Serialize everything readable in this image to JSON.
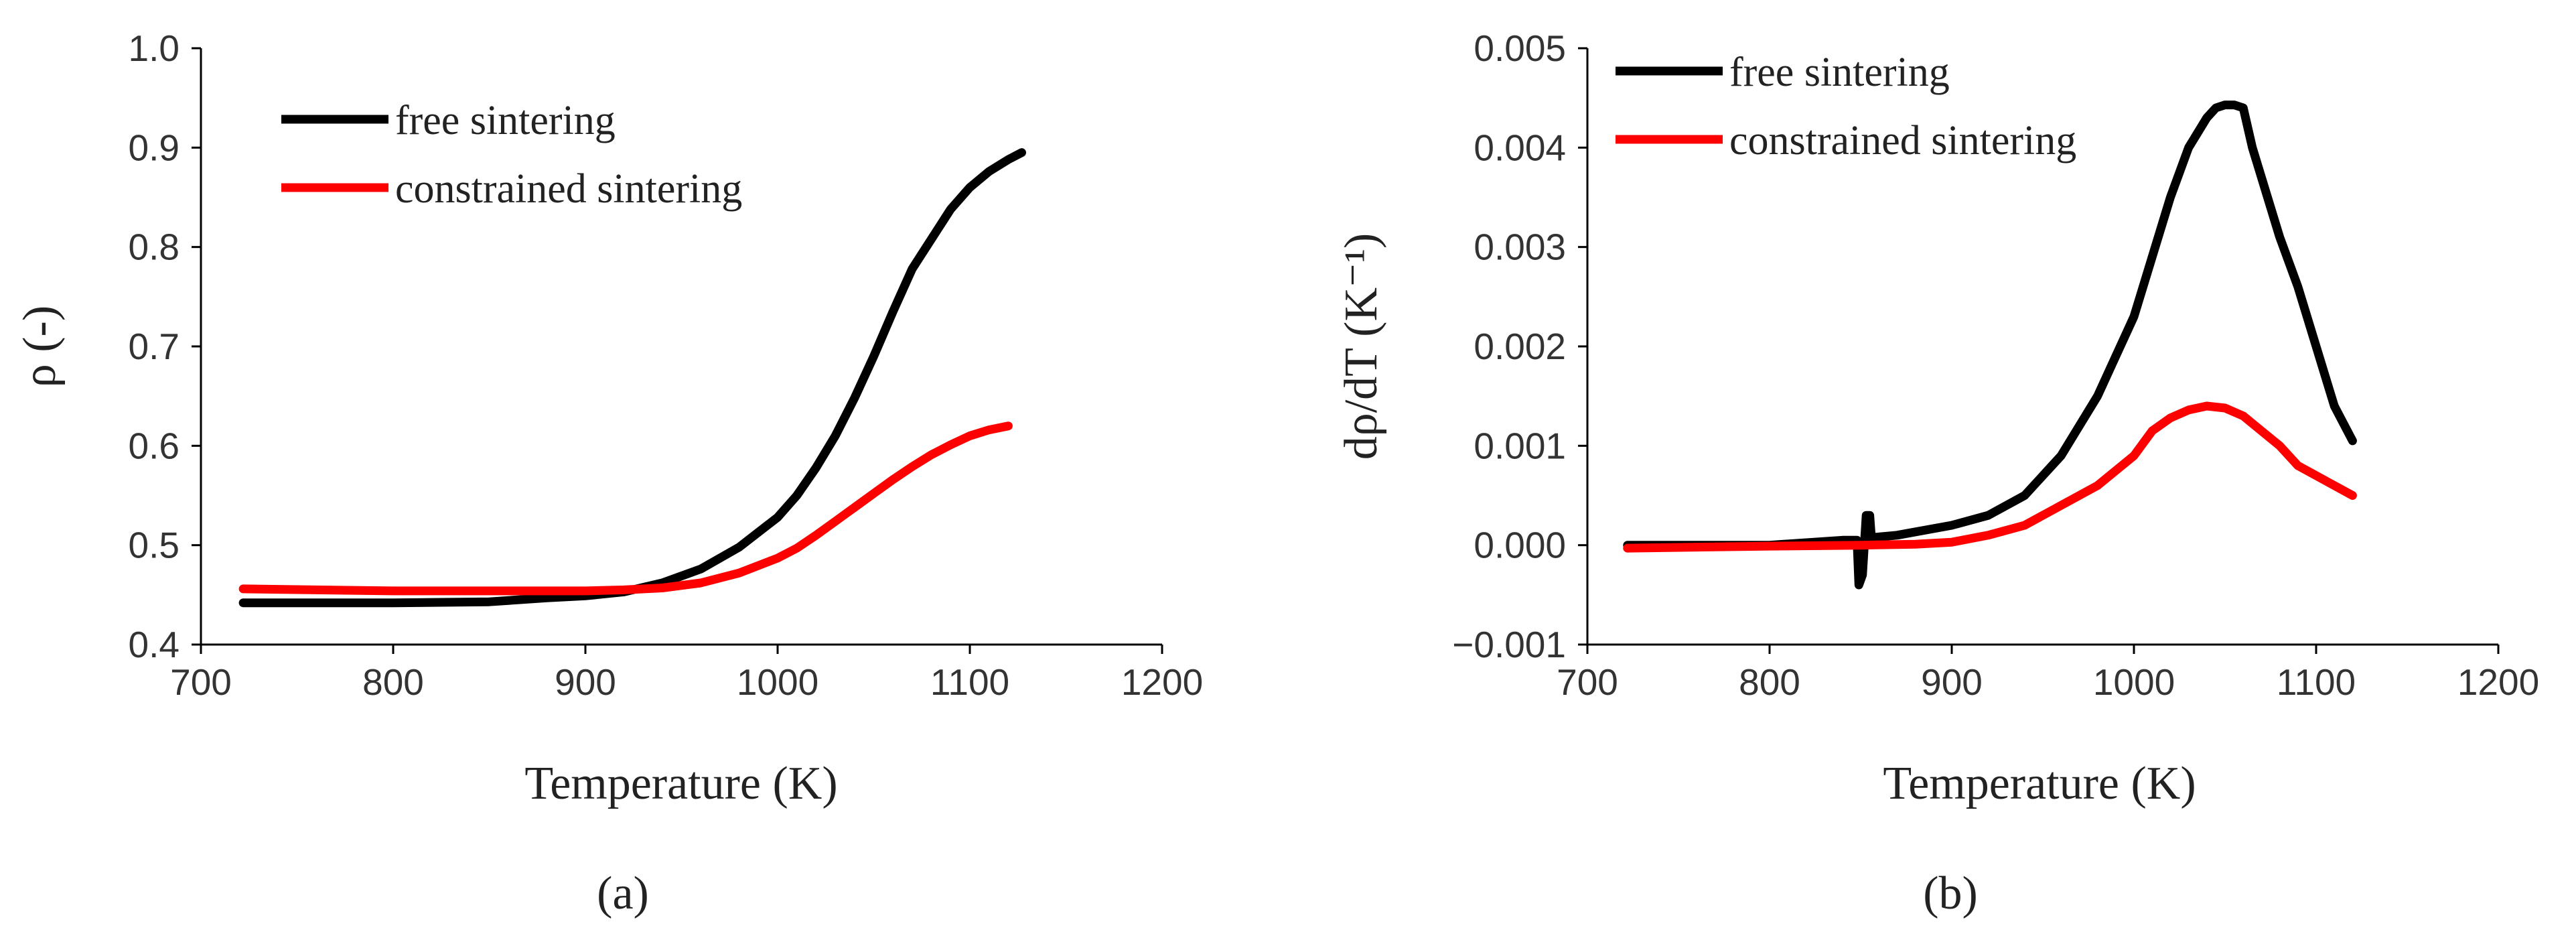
{
  "chart_data": [
    {
      "panel": "a",
      "type": "line",
      "title": "",
      "panel_label": "(a)",
      "xlabel": "Temperature (K)",
      "ylabel": "ρ (-)",
      "xlim": [
        700,
        1200
      ],
      "ylim": [
        0.4,
        1.0
      ],
      "xticks": [
        700,
        800,
        900,
        1000,
        1100,
        1200
      ],
      "xtick_labels": [
        "700",
        "800",
        "900",
        "1000",
        "1100",
        "1200"
      ],
      "yticks": [
        0.4,
        0.5,
        0.6,
        0.7,
        0.8,
        0.9,
        1.0
      ],
      "ytick_labels": [
        "0.4",
        "0.5",
        "0.6",
        "0.7",
        "0.8",
        "0.9",
        "1.0"
      ],
      "grid": false,
      "legend_position": "top-left",
      "series": [
        {
          "name": "free sintering",
          "color": "#000000",
          "x": [
            722,
            760,
            800,
            850,
            880,
            900,
            920,
            940,
            960,
            980,
            1000,
            1010,
            1020,
            1030,
            1040,
            1050,
            1060,
            1070,
            1080,
            1090,
            1100,
            1110,
            1120,
            1127
          ],
          "y": [
            0.442,
            0.442,
            0.442,
            0.443,
            0.447,
            0.449,
            0.453,
            0.462,
            0.476,
            0.498,
            0.528,
            0.55,
            0.578,
            0.61,
            0.648,
            0.69,
            0.735,
            0.778,
            0.808,
            0.838,
            0.86,
            0.876,
            0.888,
            0.895
          ]
        },
        {
          "name": "constrained sintering",
          "color": "#ff0000",
          "x": [
            722,
            760,
            800,
            850,
            900,
            920,
            940,
            960,
            980,
            1000,
            1010,
            1020,
            1030,
            1040,
            1050,
            1060,
            1070,
            1080,
            1090,
            1100,
            1110,
            1120
          ],
          "y": [
            0.456,
            0.455,
            0.454,
            0.454,
            0.454,
            0.455,
            0.457,
            0.462,
            0.472,
            0.487,
            0.497,
            0.51,
            0.524,
            0.538,
            0.552,
            0.566,
            0.579,
            0.591,
            0.601,
            0.61,
            0.616,
            0.62
          ]
        }
      ]
    },
    {
      "panel": "b",
      "type": "line",
      "title": "",
      "panel_label": "(b)",
      "xlabel": "Temperature (K)",
      "ylabel": "dρ/dT (K⁻¹)",
      "xlim": [
        700,
        1200
      ],
      "ylim": [
        -0.001,
        0.005
      ],
      "xticks": [
        700,
        800,
        900,
        1000,
        1100,
        1200
      ],
      "xtick_labels": [
        "700",
        "800",
        "900",
        "1000",
        "1100",
        "1200"
      ],
      "yticks": [
        -0.001,
        0.0,
        0.001,
        0.002,
        0.003,
        0.004,
        0.005
      ],
      "ytick_labels": [
        "−0.001",
        "0.000",
        "0.001",
        "0.002",
        "0.003",
        "0.004",
        "0.005"
      ],
      "grid": false,
      "legend_position": "top-left",
      "series": [
        {
          "name": "free sintering",
          "color": "#000000",
          "x": [
            722,
            760,
            800,
            840,
            848,
            849,
            851,
            853,
            855,
            856,
            858,
            870,
            900,
            920,
            940,
            960,
            980,
            1000,
            1010,
            1020,
            1030,
            1040,
            1045,
            1050,
            1055,
            1060,
            1065,
            1080,
            1090,
            1100,
            1110,
            1120
          ],
          "y": [
            0.0,
            0.0,
            0.0,
            5e-05,
            5e-05,
            -0.0004,
            -0.0003,
            0.0003,
            0.0003,
            5e-05,
            8e-05,
            0.0001,
            0.0002,
            0.0003,
            0.0005,
            0.0009,
            0.0015,
            0.0023,
            0.0029,
            0.0035,
            0.004,
            0.0043,
            0.0044,
            0.00443,
            0.00443,
            0.0044,
            0.004,
            0.0031,
            0.0026,
            0.002,
            0.0014,
            0.00105
          ]
        },
        {
          "name": "constrained sintering",
          "color": "#ff0000",
          "x": [
            722,
            760,
            800,
            850,
            880,
            900,
            920,
            940,
            960,
            980,
            1000,
            1010,
            1020,
            1030,
            1040,
            1050,
            1060,
            1070,
            1080,
            1090,
            1100,
            1110,
            1120
          ],
          "y": [
            -3e-05,
            -2e-05,
            -1e-05,
            0.0,
            1e-05,
            3e-05,
            0.0001,
            0.0002,
            0.0004,
            0.0006,
            0.0009,
            0.00115,
            0.00128,
            0.00136,
            0.0014,
            0.00138,
            0.0013,
            0.00115,
            0.001,
            0.0008,
            0.0007,
            0.0006,
            0.0005
          ]
        }
      ]
    }
  ]
}
